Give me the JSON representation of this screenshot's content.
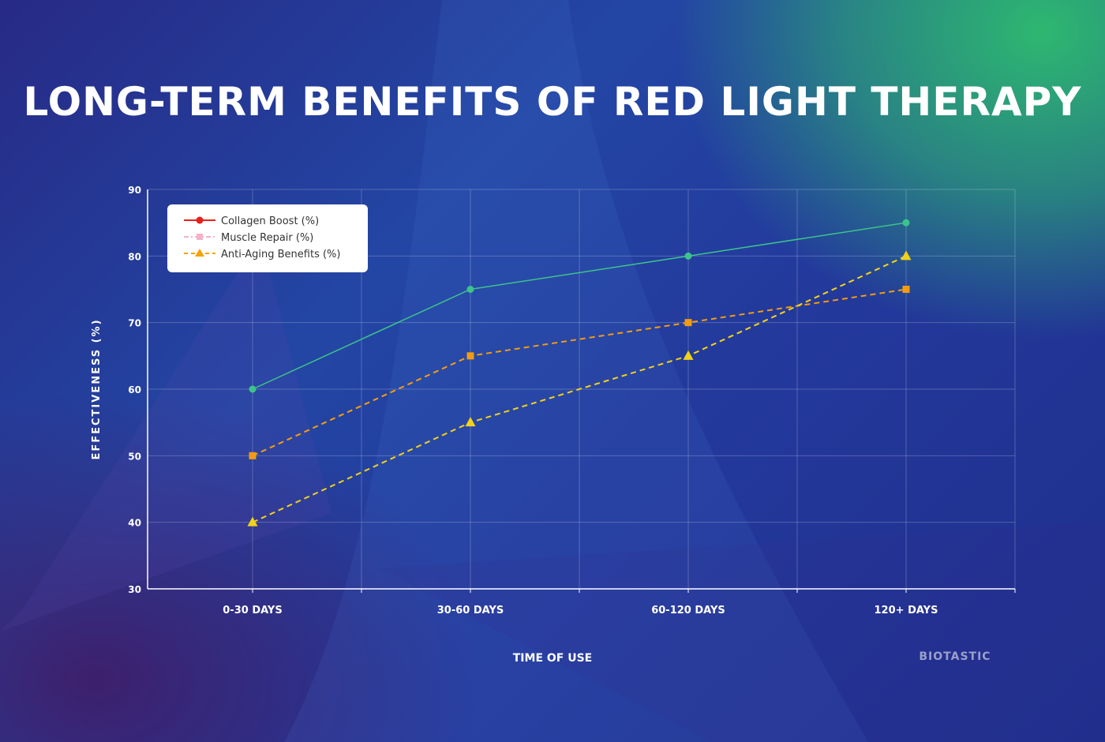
{
  "title": "LONG-TERM BENEFITS OF RED LIGHT THERAPY",
  "brand": "BIOTASTIC",
  "colors": {
    "collagen_legend": "#e8201c",
    "muscle_legend": "#f4b3c8",
    "anti_legend": "#f5a300",
    "collagen_line": "#3cc48a",
    "muscle_line": "#f39c12",
    "anti_line": "#f2d21a"
  },
  "chart_data": {
    "type": "line",
    "title": "LONG-TERM BENEFITS OF RED LIGHT THERAPY",
    "xlabel": "TIME OF USE",
    "ylabel": "EFFECTIVENESS (%)",
    "categories": [
      "0-30 DAYS",
      "30-60 DAYS",
      "60-120 DAYS",
      "120+ DAYS"
    ],
    "ylim": [
      30,
      90
    ],
    "yticks": [
      30,
      40,
      50,
      60,
      70,
      80,
      90
    ],
    "grid": true,
    "legend_position": "top-left",
    "series": [
      {
        "name": "Collagen Boost (%)",
        "values": [
          60,
          75,
          80,
          85
        ],
        "marker": "circle",
        "line_style": "solid"
      },
      {
        "name": "Muscle Repair (%)",
        "values": [
          50,
          65,
          70,
          75
        ],
        "marker": "square",
        "line_style": "dashed"
      },
      {
        "name": "Anti-Aging Benefits (%)",
        "values": [
          40,
          55,
          65,
          80
        ],
        "marker": "triangle",
        "line_style": "dashed"
      }
    ]
  }
}
